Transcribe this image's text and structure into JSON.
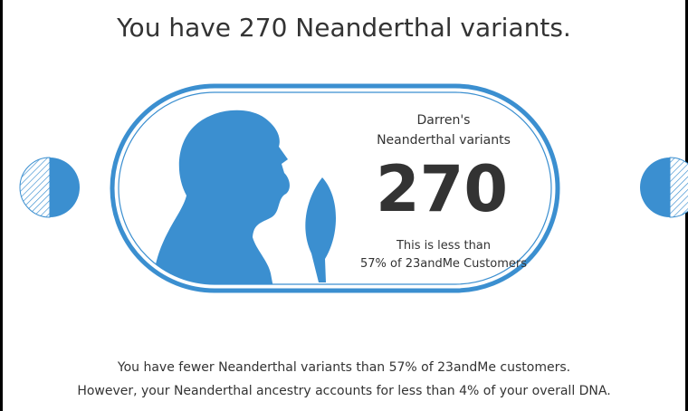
{
  "title": "You have 270 Neanderthal variants.",
  "card": {
    "name": "Darren's",
    "label": "Neanderthal variants",
    "count": 270,
    "comparison_line1": "This is less than",
    "comparison_line2": "57% of 23andMe Customers"
  },
  "summary": [
    "You have fewer Neanderthal variants than 57% of 23andMe customers.",
    "However, your Neanderthal ancestry accounts for less than 4% of your overall DNA."
  ]
}
